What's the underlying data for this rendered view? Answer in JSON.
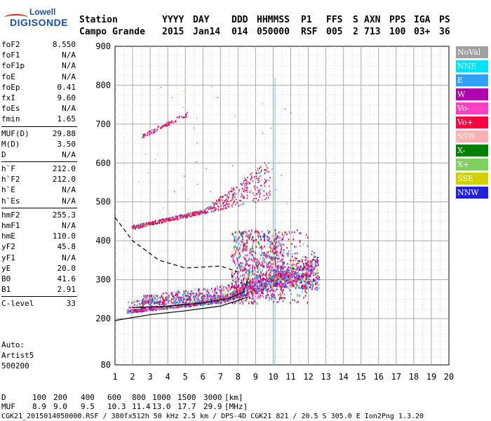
{
  "logo": {
    "line1": "Lowell",
    "line2": "DIGISONDE"
  },
  "header": {
    "labels": [
      "Station",
      "YYYY",
      "DAY",
      "DDD",
      "HHMMSS",
      "P1",
      "FFS",
      "S",
      "AXN",
      "PPS",
      "IGA",
      "PS"
    ],
    "values": [
      "Campo Grande",
      "2015",
      "Jan14",
      "014",
      "050000",
      "RSF",
      "005",
      "2",
      "713",
      "100",
      "03+",
      "36"
    ]
  },
  "params_groups": [
    [
      {
        "k": "foF2",
        "v": "8.550"
      },
      {
        "k": "foF1",
        "v": "N/A"
      },
      {
        "k": "foF1p",
        "v": "N/A"
      },
      {
        "k": "foE",
        "v": "N/A"
      },
      {
        "k": "foEp",
        "v": "0.41"
      },
      {
        "k": "fxI",
        "v": "9.60"
      },
      {
        "k": "foEs",
        "v": "N/A"
      },
      {
        "k": "fmin",
        "v": "1.65"
      }
    ],
    [
      {
        "k": "MUF(D)",
        "v": "29.88"
      },
      {
        "k": "M(D)",
        "v": "3.50"
      },
      {
        "k": "D",
        "v": "N/A"
      }
    ],
    [
      {
        "k": "h`F",
        "v": "212.0"
      },
      {
        "k": "h`F2",
        "v": "212.0"
      },
      {
        "k": "h`E",
        "v": "N/A"
      },
      {
        "k": "h`Es",
        "v": "N/A"
      }
    ],
    [
      {
        "k": "hmF2",
        "v": "255.3"
      },
      {
        "k": "hmF1",
        "v": "N/A"
      },
      {
        "k": "hmE",
        "v": "110.0"
      },
      {
        "k": "yF2",
        "v": "45.8"
      },
      {
        "k": "yF1",
        "v": "N/A"
      },
      {
        "k": "yE",
        "v": "20.0"
      },
      {
        "k": "B0",
        "v": "41.6"
      },
      {
        "k": "B1",
        "v": "2.91"
      }
    ],
    [
      {
        "k": "C-level",
        "v": "33"
      }
    ]
  ],
  "auto": {
    "line1": "Auto:",
    "line2": "Artist5",
    "line3": "500200"
  },
  "legend": [
    {
      "label": "NoVal",
      "color": "#a0a0a0"
    },
    {
      "label": "NNE",
      "color": "#00e0ff"
    },
    {
      "label": "E",
      "color": "#30a0ff"
    },
    {
      "label": "W",
      "color": "#b000b0"
    },
    {
      "label": "Vo-",
      "color": "#ff40c0"
    },
    {
      "label": "Vo+",
      "color": "#ff0040"
    },
    {
      "label": "SSW",
      "color": "#ffb0b0"
    },
    {
      "label": "X-",
      "color": "#008000"
    },
    {
      "label": "X+",
      "color": "#80d060"
    },
    {
      "label": "SSE",
      "color": "#d0d000"
    },
    {
      "label": "NNW",
      "color": "#2020e0"
    }
  ],
  "bottom": {
    "row_d_label": "D",
    "row_d_values": [
      "100",
      "200",
      "400",
      "600",
      "800",
      "1000",
      "1500",
      "3000",
      "[km]"
    ],
    "row_muf_label": "MUF",
    "row_muf_values": [
      "8.9",
      "9.0",
      "9.5",
      "10.3",
      "11.4",
      "13.0",
      "17.7",
      "29.9",
      "[MHz]"
    ],
    "footer": "CGK21_2015014050000.RSF / 380fx512h 50 kHz 2.5 km / DPS-4D CGK21 821 / 20.5 S 305.0 E Ion2Png 1.3.20"
  },
  "chart_data": {
    "type": "scatter",
    "x_ticks": [
      1,
      2,
      3,
      4,
      5,
      6,
      7,
      8,
      9,
      10,
      11,
      12,
      13,
      14,
      15,
      16,
      17,
      18,
      19,
      20
    ],
    "y_ticks": [
      80,
      200,
      300,
      400,
      500,
      600,
      700,
      800,
      900
    ],
    "xlim": [
      1,
      20
    ],
    "ylim_break": [
      80,
      900
    ],
    "grid": true,
    "legend_position": "right",
    "traces": [
      {
        "name": "F2 trace main",
        "x_range": [
          1.65,
          12.5
        ],
        "h_start": 215,
        "h_end": 310,
        "color_mix": "mixed"
      },
      {
        "name": "F2 multihop",
        "x_range": [
          1.9,
          9.8
        ],
        "h_start": 430,
        "h_end": 550
      },
      {
        "name": "F2 third hop",
        "x_range": [
          2.5,
          5.0
        ],
        "h_start": 665,
        "h_end": 740
      }
    ],
    "profile_solid": [
      [
        1.0,
        195
      ],
      [
        3,
        210
      ],
      [
        5,
        220
      ],
      [
        7,
        232
      ],
      [
        8.55,
        255
      ]
    ],
    "profile_dashed": [
      [
        1.0,
        460
      ],
      [
        2,
        400
      ],
      [
        3.5,
        350
      ],
      [
        5,
        330
      ],
      [
        7,
        335
      ],
      [
        8.0,
        320
      ]
    ],
    "vertical_line_x": 10.1
  }
}
